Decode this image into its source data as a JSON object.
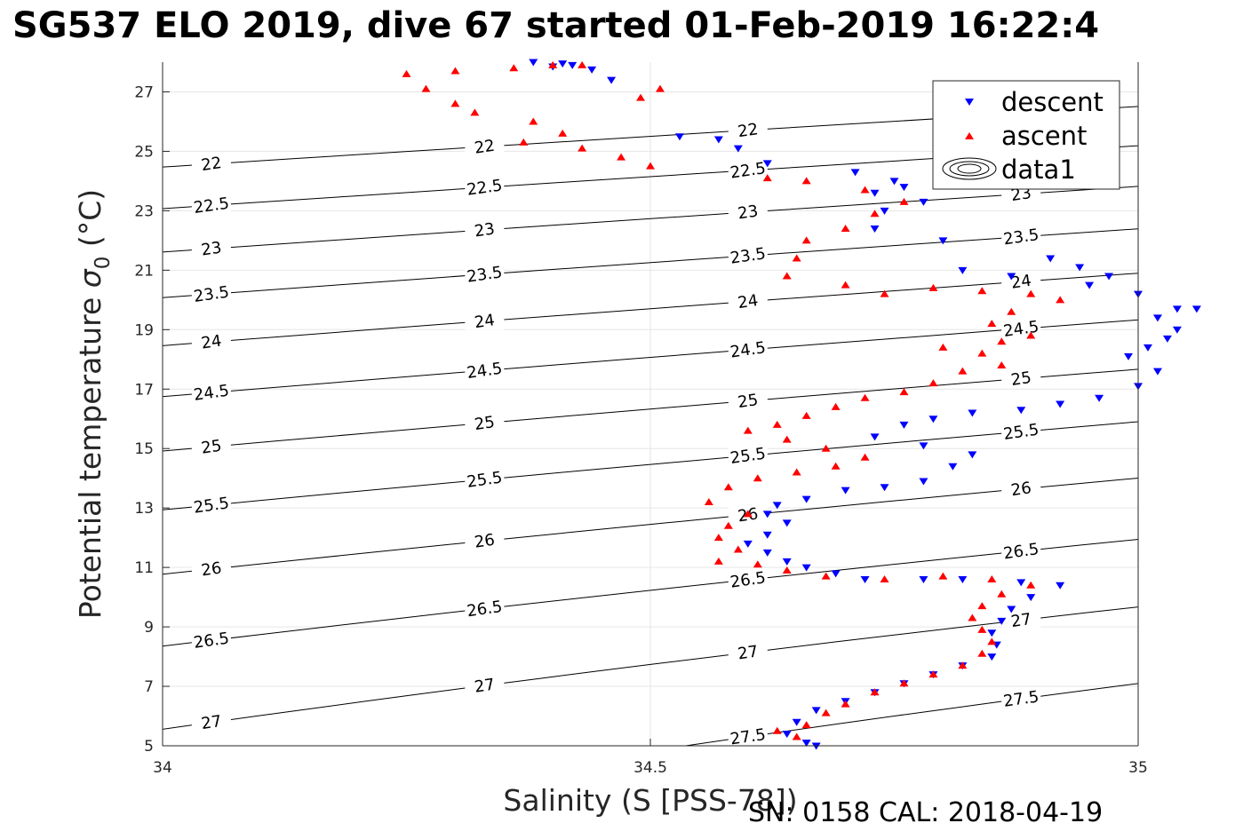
{
  "title": "SG537 ELO 2019, dive 67 started 01-Feb-2019 16:22:4",
  "footer": "SN: 0158  CAL: 2018-04-19",
  "chart_data": {
    "type": "scatter",
    "xlabel": "Salinity (S [PSS-78])",
    "ylabel": "Potential temperature",
    "ylabel_symbol": "σ",
    "ylabel_sub": "0",
    "ylabel_unit": "(°C)",
    "xlim": [
      34,
      35
    ],
    "ylim": [
      5,
      28
    ],
    "xticks": [
      34,
      34.5,
      35
    ],
    "xtick_labels": [
      "34",
      "34.5",
      "35"
    ],
    "yticks": [
      5,
      7,
      9,
      11,
      13,
      15,
      17,
      19,
      21,
      23,
      25,
      27
    ],
    "ytick_labels": [
      "5",
      "7",
      "9",
      "11",
      "13",
      "15",
      "17",
      "19",
      "21",
      "23",
      "25",
      "27"
    ],
    "grid": "major",
    "legend_position": "top-right",
    "series": [
      {
        "name": "descent",
        "marker": "triangle-down",
        "color": "#0000ff",
        "points": [
          [
            34.67,
            5.0
          ],
          [
            34.66,
            5.1
          ],
          [
            34.64,
            5.4
          ],
          [
            34.65,
            5.8
          ],
          [
            34.67,
            6.2
          ],
          [
            34.7,
            6.5
          ],
          [
            34.73,
            6.8
          ],
          [
            34.76,
            7.1
          ],
          [
            34.79,
            7.4
          ],
          [
            34.82,
            7.7
          ],
          [
            34.85,
            8.0
          ],
          [
            34.855,
            8.4
          ],
          [
            34.85,
            8.8
          ],
          [
            34.86,
            9.2
          ],
          [
            34.87,
            9.6
          ],
          [
            34.89,
            10.0
          ],
          [
            34.92,
            10.4
          ],
          [
            34.88,
            10.5
          ],
          [
            34.82,
            10.6
          ],
          [
            34.78,
            10.6
          ],
          [
            34.72,
            10.6
          ],
          [
            34.69,
            10.8
          ],
          [
            34.66,
            11.0
          ],
          [
            34.64,
            11.2
          ],
          [
            34.62,
            11.5
          ],
          [
            34.6,
            11.8
          ],
          [
            34.62,
            12.1
          ],
          [
            34.64,
            12.5
          ],
          [
            34.62,
            12.8
          ],
          [
            34.63,
            13.1
          ],
          [
            34.66,
            13.3
          ],
          [
            34.7,
            13.6
          ],
          [
            34.74,
            13.7
          ],
          [
            34.78,
            13.9
          ],
          [
            34.81,
            14.4
          ],
          [
            34.83,
            14.8
          ],
          [
            34.78,
            15.1
          ],
          [
            34.73,
            15.4
          ],
          [
            34.76,
            15.8
          ],
          [
            34.79,
            16.0
          ],
          [
            34.83,
            16.2
          ],
          [
            34.88,
            16.3
          ],
          [
            34.92,
            16.5
          ],
          [
            34.96,
            16.7
          ],
          [
            35.0,
            17.1
          ],
          [
            35.02,
            17.6
          ],
          [
            34.99,
            18.1
          ],
          [
            35.01,
            18.4
          ],
          [
            35.03,
            18.7
          ],
          [
            35.04,
            19.0
          ],
          [
            35.02,
            19.4
          ],
          [
            35.04,
            19.7
          ],
          [
            35.06,
            19.7
          ],
          [
            35.0,
            20.2
          ],
          [
            34.95,
            20.5
          ],
          [
            34.97,
            20.8
          ],
          [
            34.94,
            21.1
          ],
          [
            34.91,
            21.4
          ],
          [
            34.87,
            20.8
          ],
          [
            34.82,
            21.0
          ],
          [
            34.8,
            22.0
          ],
          [
            34.73,
            22.4
          ],
          [
            34.74,
            23.0
          ],
          [
            34.78,
            23.3
          ],
          [
            34.73,
            23.6
          ],
          [
            34.76,
            23.8
          ],
          [
            34.75,
            24.0
          ],
          [
            34.71,
            24.3
          ],
          [
            34.62,
            24.6
          ],
          [
            34.59,
            25.1
          ],
          [
            34.57,
            25.4
          ],
          [
            34.53,
            25.5
          ],
          [
            34.46,
            27.4
          ],
          [
            34.44,
            27.75
          ],
          [
            34.42,
            27.9
          ],
          [
            34.41,
            27.95
          ],
          [
            34.4,
            27.85
          ],
          [
            34.38,
            28.0
          ]
        ]
      },
      {
        "name": "ascent",
        "marker": "triangle-up",
        "color": "#ff0000",
        "points": [
          [
            34.63,
            5.5
          ],
          [
            34.65,
            5.3
          ],
          [
            34.66,
            5.7
          ],
          [
            34.68,
            6.1
          ],
          [
            34.7,
            6.4
          ],
          [
            34.73,
            6.8
          ],
          [
            34.76,
            7.1
          ],
          [
            34.79,
            7.4
          ],
          [
            34.82,
            7.7
          ],
          [
            34.84,
            8.1
          ],
          [
            34.85,
            8.5
          ],
          [
            34.84,
            8.9
          ],
          [
            34.83,
            9.3
          ],
          [
            34.84,
            9.7
          ],
          [
            34.86,
            10.1
          ],
          [
            34.89,
            10.4
          ],
          [
            34.85,
            10.6
          ],
          [
            34.8,
            10.7
          ],
          [
            34.74,
            10.6
          ],
          [
            34.68,
            10.7
          ],
          [
            34.64,
            10.9
          ],
          [
            34.61,
            11.1
          ],
          [
            34.57,
            11.2
          ],
          [
            34.59,
            11.6
          ],
          [
            34.57,
            12.0
          ],
          [
            34.58,
            12.4
          ],
          [
            34.6,
            12.8
          ],
          [
            34.56,
            13.2
          ],
          [
            34.58,
            13.7
          ],
          [
            34.61,
            14.0
          ],
          [
            34.65,
            14.2
          ],
          [
            34.69,
            14.4
          ],
          [
            34.72,
            14.7
          ],
          [
            34.68,
            15.0
          ],
          [
            34.64,
            15.3
          ],
          [
            34.6,
            15.6
          ],
          [
            34.63,
            15.8
          ],
          [
            34.66,
            16.1
          ],
          [
            34.69,
            16.4
          ],
          [
            34.72,
            16.7
          ],
          [
            34.76,
            16.9
          ],
          [
            34.79,
            17.2
          ],
          [
            34.82,
            17.6
          ],
          [
            34.86,
            17.8
          ],
          [
            34.84,
            18.2
          ],
          [
            34.8,
            18.4
          ],
          [
            34.86,
            18.6
          ],
          [
            34.89,
            18.8
          ],
          [
            34.85,
            19.2
          ],
          [
            34.87,
            19.6
          ],
          [
            34.92,
            20.0
          ],
          [
            34.89,
            20.2
          ],
          [
            34.84,
            20.3
          ],
          [
            34.79,
            20.4
          ],
          [
            34.74,
            20.2
          ],
          [
            34.7,
            20.5
          ],
          [
            34.64,
            20.8
          ],
          [
            34.65,
            21.4
          ],
          [
            34.66,
            22.0
          ],
          [
            34.7,
            22.4
          ],
          [
            34.73,
            22.9
          ],
          [
            34.76,
            23.3
          ],
          [
            34.72,
            23.7
          ],
          [
            34.66,
            24.0
          ],
          [
            34.62,
            24.1
          ],
          [
            34.5,
            24.5
          ],
          [
            34.47,
            24.8
          ],
          [
            34.43,
            25.1
          ],
          [
            34.37,
            25.3
          ],
          [
            34.41,
            25.6
          ],
          [
            34.38,
            26.0
          ],
          [
            34.32,
            26.3
          ],
          [
            34.3,
            26.6
          ],
          [
            34.27,
            27.1
          ],
          [
            34.25,
            27.6
          ],
          [
            34.3,
            27.7
          ],
          [
            34.36,
            27.8
          ],
          [
            34.4,
            27.9
          ],
          [
            34.43,
            27.9
          ],
          [
            34.51,
            27.1
          ],
          [
            34.49,
            26.8
          ]
        ]
      }
    ],
    "contour_legend_label": "data1",
    "contours": [
      {
        "label": "22",
        "value": 22.0
      },
      {
        "label": "22.5",
        "value": 22.5
      },
      {
        "label": "23",
        "value": 23.0
      },
      {
        "label": "23.5",
        "value": 23.5
      },
      {
        "label": "24",
        "value": 24.0
      },
      {
        "label": "24.5",
        "value": 24.5
      },
      {
        "label": "25",
        "value": 25.0
      },
      {
        "label": "25.5",
        "value": 25.5
      },
      {
        "label": "26",
        "value": 26.0
      },
      {
        "label": "26.5",
        "value": 26.5
      },
      {
        "label": "27",
        "value": 27.0
      },
      {
        "label": "27.5",
        "value": 27.5
      }
    ]
  }
}
